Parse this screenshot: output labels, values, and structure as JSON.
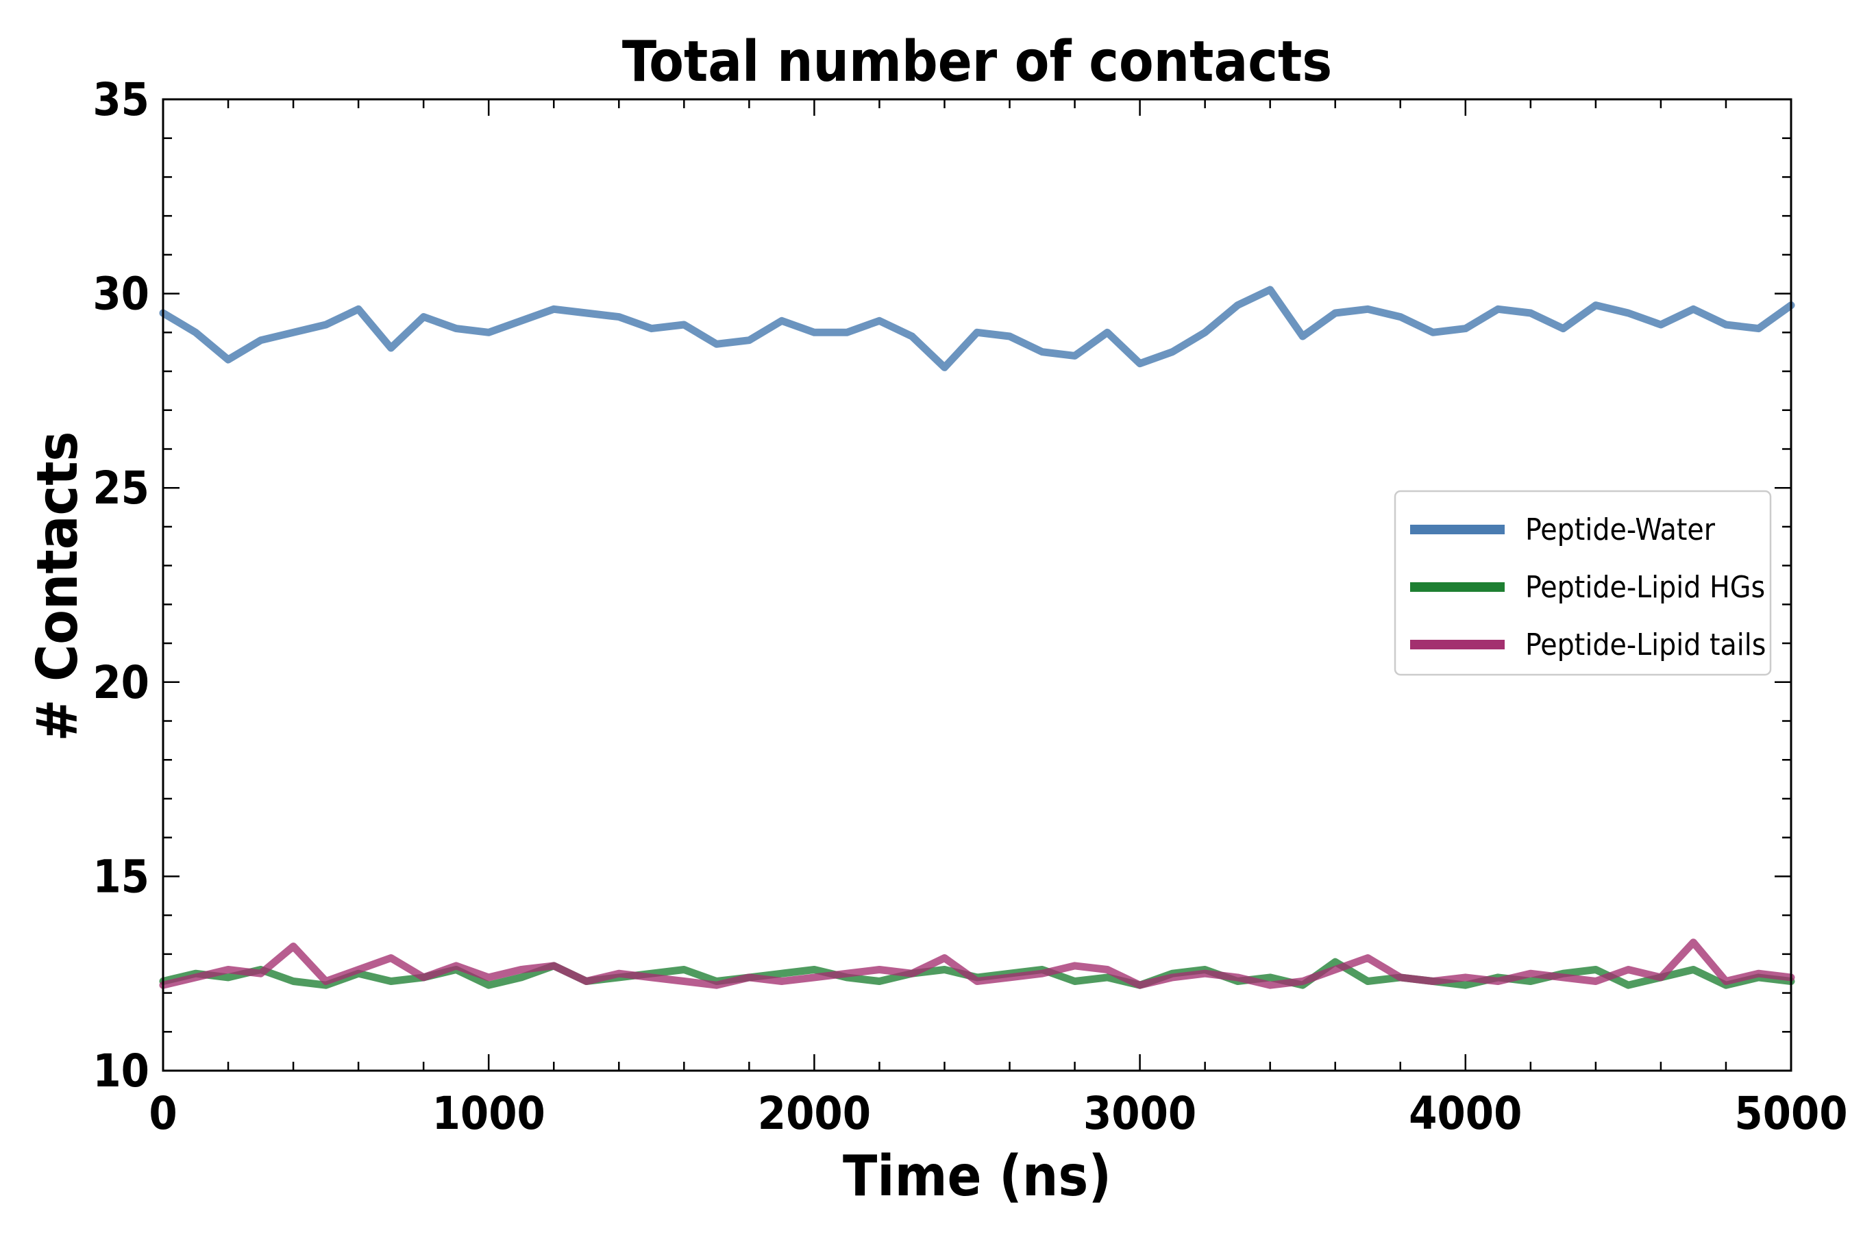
{
  "chart_data": {
    "type": "line",
    "title": "Total number of contacts",
    "xlabel": "Time (ns)",
    "ylabel": "# Contacts",
    "xlim": [
      0,
      5000
    ],
    "ylim": [
      10,
      35
    ],
    "xticks": [
      0,
      1000,
      2000,
      3000,
      4000,
      5000
    ],
    "yticks": [
      10,
      15,
      20,
      25,
      30,
      35
    ],
    "x_minor_step": 200,
    "y_minor_step": 1,
    "grid": false,
    "legend_position": "center-right",
    "series": [
      {
        "name": "Peptide-Water",
        "color": "#4a7cb1",
        "alpha": 0.82,
        "x": [
          0,
          100,
          200,
          300,
          400,
          500,
          600,
          700,
          800,
          900,
          1000,
          1100,
          1200,
          1300,
          1400,
          1500,
          1600,
          1700,
          1800,
          1900,
          2000,
          2100,
          2200,
          2300,
          2400,
          2500,
          2600,
          2700,
          2800,
          2900,
          3000,
          3100,
          3200,
          3300,
          3400,
          3500,
          3600,
          3700,
          3800,
          3900,
          4000,
          4100,
          4200,
          4300,
          4400,
          4500,
          4600,
          4700,
          4800,
          4900,
          5000
        ],
        "values": [
          29.5,
          29.0,
          28.3,
          28.8,
          29.0,
          29.2,
          29.6,
          28.6,
          29.4,
          29.1,
          29.0,
          29.3,
          29.6,
          29.5,
          29.4,
          29.1,
          29.2,
          28.7,
          28.8,
          29.3,
          29.0,
          29.0,
          29.3,
          28.9,
          28.1,
          29.0,
          28.9,
          28.5,
          28.4,
          29.0,
          28.2,
          28.5,
          29.0,
          29.7,
          30.1,
          28.9,
          29.5,
          29.6,
          29.4,
          29.0,
          29.1,
          29.6,
          29.5,
          29.1,
          29.7,
          29.5,
          29.2,
          29.6,
          29.2,
          29.1,
          29.7
        ]
      },
      {
        "name": "Peptide-Lipid HGs",
        "color": "#1e7f32",
        "alpha": 0.78,
        "x": [
          0,
          100,
          200,
          300,
          400,
          500,
          600,
          700,
          800,
          900,
          1000,
          1100,
          1200,
          1300,
          1400,
          1500,
          1600,
          1700,
          1800,
          1900,
          2000,
          2100,
          2200,
          2300,
          2400,
          2500,
          2600,
          2700,
          2800,
          2900,
          3000,
          3100,
          3200,
          3300,
          3400,
          3500,
          3600,
          3700,
          3800,
          3900,
          4000,
          4100,
          4200,
          4300,
          4400,
          4500,
          4600,
          4700,
          4800,
          4900,
          5000
        ],
        "values": [
          12.3,
          12.5,
          12.4,
          12.6,
          12.3,
          12.2,
          12.5,
          12.3,
          12.4,
          12.6,
          12.2,
          12.4,
          12.7,
          12.3,
          12.4,
          12.5,
          12.6,
          12.3,
          12.4,
          12.5,
          12.6,
          12.4,
          12.3,
          12.5,
          12.6,
          12.4,
          12.5,
          12.6,
          12.3,
          12.4,
          12.2,
          12.5,
          12.6,
          12.3,
          12.4,
          12.2,
          12.8,
          12.3,
          12.4,
          12.3,
          12.2,
          12.4,
          12.3,
          12.5,
          12.6,
          12.2,
          12.4,
          12.6,
          12.2,
          12.4,
          12.3
        ]
      },
      {
        "name": "Peptide-Lipid tails",
        "color": "#a3306f",
        "alpha": 0.78,
        "x": [
          0,
          100,
          200,
          300,
          400,
          500,
          600,
          700,
          800,
          900,
          1000,
          1100,
          1200,
          1300,
          1400,
          1500,
          1600,
          1700,
          1800,
          1900,
          2000,
          2100,
          2200,
          2300,
          2400,
          2500,
          2600,
          2700,
          2800,
          2900,
          3000,
          3100,
          3200,
          3300,
          3400,
          3500,
          3600,
          3700,
          3800,
          3900,
          4000,
          4100,
          4200,
          4300,
          4400,
          4500,
          4600,
          4700,
          4800,
          4900,
          5000
        ],
        "values": [
          12.2,
          12.4,
          12.6,
          12.5,
          13.2,
          12.3,
          12.6,
          12.9,
          12.4,
          12.7,
          12.4,
          12.6,
          12.7,
          12.3,
          12.5,
          12.4,
          12.3,
          12.2,
          12.4,
          12.3,
          12.4,
          12.5,
          12.6,
          12.5,
          12.9,
          12.3,
          12.4,
          12.5,
          12.7,
          12.6,
          12.2,
          12.4,
          12.5,
          12.4,
          12.2,
          12.3,
          12.6,
          12.9,
          12.4,
          12.3,
          12.4,
          12.3,
          12.5,
          12.4,
          12.3,
          12.6,
          12.4,
          13.3,
          12.3,
          12.5,
          12.4
        ]
      }
    ]
  }
}
